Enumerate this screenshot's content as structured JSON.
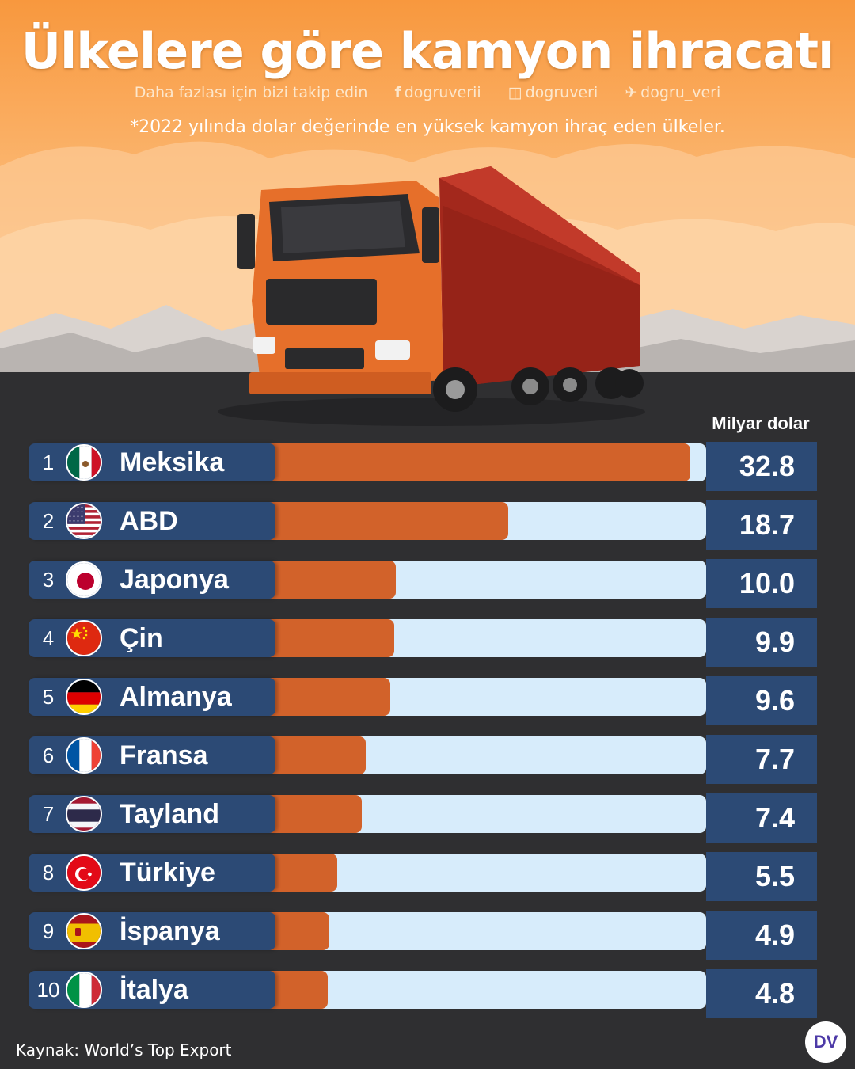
{
  "header": {
    "title": "Ülkelere göre kamyon ihracatı",
    "social": {
      "follow_text": "Daha fazlası için bizi takip edin",
      "facebook": "dogruverii",
      "instagram": "dogruveri",
      "twitter": "dogru_veri"
    },
    "subtitle": "*2022 yılında dolar değerinde en yüksek kamyon ihraç eden ülkeler."
  },
  "icons": [
    "facebook-icon",
    "instagram-icon",
    "twitter-icon",
    "truck-illustration",
    "flag-icon"
  ],
  "colors": {
    "bar_fill": "#d2622a",
    "bar_track": "#d7ecfb",
    "label_bg": "#2c4a75",
    "background_top": "#f9a24b",
    "background_bottom": "#2f2f31"
  },
  "chart_data": {
    "type": "bar",
    "orientation": "horizontal",
    "unit_label": "Milyar dolar",
    "xlim": [
      0,
      34
    ],
    "grid": false,
    "categories": [
      "Meksika",
      "ABD",
      "Japonya",
      "Çin",
      "Almanya",
      "Fransa",
      "Tayland",
      "Türkiye",
      "İspanya",
      "İtalya"
    ],
    "ranks": [
      "1",
      "2",
      "3",
      "4",
      "5",
      "6",
      "7",
      "8",
      "9",
      "10"
    ],
    "values": [
      32.8,
      18.7,
      10.0,
      9.9,
      9.6,
      7.7,
      7.4,
      5.5,
      4.9,
      4.8
    ],
    "value_labels": [
      "32.8",
      "18.7",
      "10.0",
      "9.9",
      "9.6",
      "7.7",
      "7.4",
      "5.5",
      "4.9",
      "4.8"
    ],
    "flags": [
      "mx",
      "us",
      "jp",
      "cn",
      "de",
      "fr",
      "th",
      "tr",
      "es",
      "it"
    ]
  },
  "footer": {
    "source": "Kaynak: World’s Top Export",
    "logo_text": "DV"
  }
}
